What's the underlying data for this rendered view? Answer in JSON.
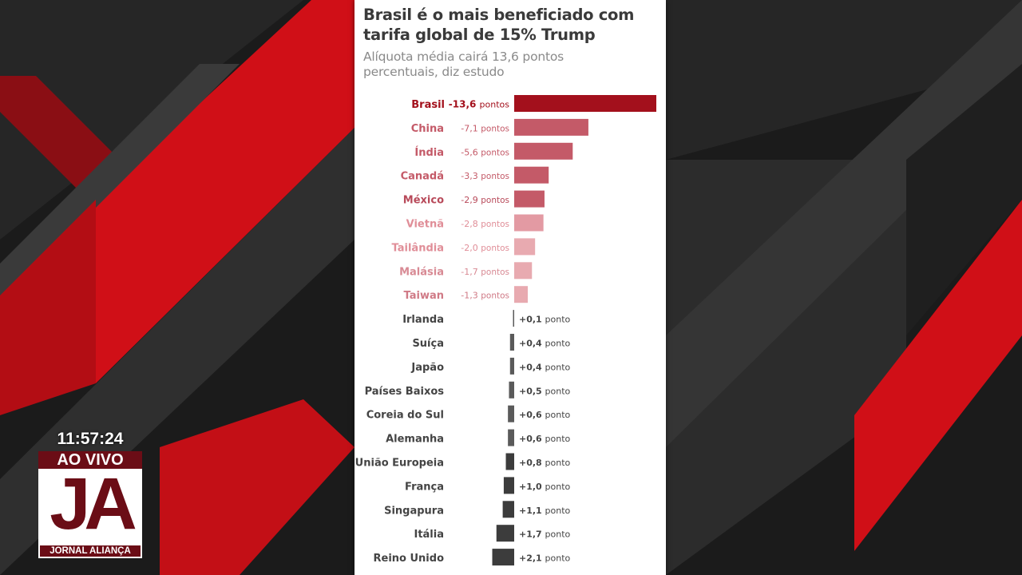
{
  "broadcast": {
    "time": "11:57:24",
    "live_label": "AO VIVO",
    "logo_letters": "JA",
    "channel_name": "JORNAL ALIANÇA"
  },
  "colors": {
    "brand_dark_red": "#6b0d16",
    "bar_max": "#a3101c",
    "bar_negative_light": "#e8aab0",
    "bar_positive": "#4a4a4a"
  },
  "chart_data": {
    "type": "bar",
    "orientation": "horizontal-diverging",
    "title": "Brasil é o mais beneficiado com tarifa global de 15% Trump",
    "subtitle": "Alíquota média cairá 13,6 pontos percentuais, diz estudo",
    "categories": [
      "Brasil",
      "China",
      "Índia",
      "Canadá",
      "México",
      "Vietnã",
      "Tailândia",
      "Malásia",
      "Taiwan",
      "Irlanda",
      "Suíça",
      "Japão",
      "Países Baixos",
      "Coreia do Sul",
      "Alemanha",
      "União Europeia",
      "França",
      "Singapura",
      "Itália",
      "Reino Unido"
    ],
    "values": [
      -13.6,
      -7.1,
      -5.6,
      -3.3,
      -2.9,
      -2.8,
      -2.0,
      -1.7,
      -1.3,
      0.1,
      0.4,
      0.4,
      0.5,
      0.6,
      0.6,
      0.8,
      1.0,
      1.1,
      1.7,
      2.1
    ],
    "value_labels": [
      {
        "num": "-13,6",
        "unit": "pontos"
      },
      {
        "num": "-7,1",
        "unit": "pontos"
      },
      {
        "num": "-5,6",
        "unit": "pontos"
      },
      {
        "num": "-3,3",
        "unit": "pontos"
      },
      {
        "num": "-2,9",
        "unit": "pontos"
      },
      {
        "num": "-2,8",
        "unit": "pontos"
      },
      {
        "num": "-2,0",
        "unit": "pontos"
      },
      {
        "num": "-1,7",
        "unit": "pontos"
      },
      {
        "num": "-1,3",
        "unit": "pontos"
      },
      {
        "num": "+0,1",
        "unit": "ponto"
      },
      {
        "num": "+0,4",
        "unit": "ponto"
      },
      {
        "num": "+0,4",
        "unit": "ponto"
      },
      {
        "num": "+0,5",
        "unit": "ponto"
      },
      {
        "num": "+0,6",
        "unit": "ponto"
      },
      {
        "num": "+0,6",
        "unit": "ponto"
      },
      {
        "num": "+0,8",
        "unit": "ponto"
      },
      {
        "num": "+1,0",
        "unit": "ponto"
      },
      {
        "num": "+1,1",
        "unit": "ponto"
      },
      {
        "num": "+1,7",
        "unit": "ponto"
      },
      {
        "num": "+2,1",
        "unit": "ponto"
      }
    ],
    "bar_colors": [
      "#a3101c",
      "#c45a68",
      "#c45a68",
      "#c45a68",
      "#c45a68",
      "#e39aa3",
      "#e8aab0",
      "#e8aab0",
      "#e8aab0",
      "#5a5a5a",
      "#5a5a5a",
      "#5a5a5a",
      "#5a5a5a",
      "#5a5a5a",
      "#5a5a5a",
      "#3c3c3c",
      "#3c3c3c",
      "#3c3c3c",
      "#3c3c3c",
      "#3c3c3c"
    ],
    "label_colors": [
      "#a3101c",
      "#c45a68",
      "#c45a68",
      "#c45a68",
      "#b84a5a",
      "#e08e98",
      "#e08e98",
      "#d88a94",
      "#d07a86",
      "#444444",
      "#444444",
      "#444444",
      "#444444",
      "#444444",
      "#444444",
      "#444444",
      "#444444",
      "#444444",
      "#444444",
      "#444444"
    ],
    "legend": "none",
    "grid": false
  }
}
